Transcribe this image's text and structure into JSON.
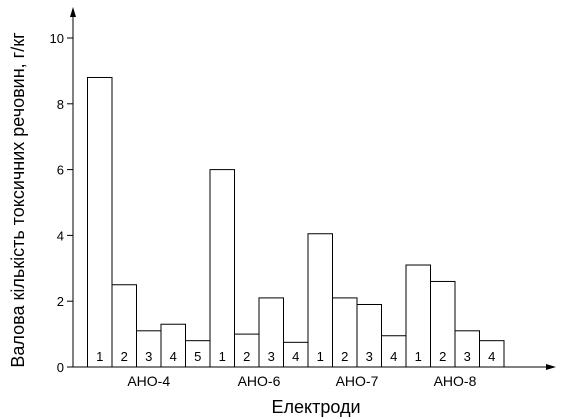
{
  "chart_data": {
    "type": "bar",
    "xlabel": "Електроди",
    "ylabel": "Валова кількість токсичних речовин, г/кг",
    "ylim": [
      0,
      10
    ],
    "yticks": [
      0,
      2,
      4,
      6,
      8,
      10
    ],
    "y_tick_labels": [
      "0",
      "2",
      "4",
      "6",
      "8",
      "10"
    ],
    "grid": false,
    "groups": [
      {
        "name": "АНО-4",
        "bar_labels": [
          "1",
          "2",
          "3",
          "4",
          "5"
        ],
        "values": [
          8.8,
          2.5,
          1.1,
          1.3,
          0.8
        ]
      },
      {
        "name": "АНО-6",
        "bar_labels": [
          "1",
          "2",
          "3",
          "4"
        ],
        "values": [
          6.0,
          1.0,
          2.1,
          0.75
        ]
      },
      {
        "name": "АНО-7",
        "bar_labels": [
          "1",
          "2",
          "3",
          "4"
        ],
        "values": [
          4.05,
          2.1,
          1.9,
          0.95
        ]
      },
      {
        "name": "АНО-8",
        "bar_labels": [
          "1",
          "2",
          "3",
          "4"
        ],
        "values": [
          3.1,
          2.6,
          1.1,
          0.8
        ]
      }
    ]
  }
}
